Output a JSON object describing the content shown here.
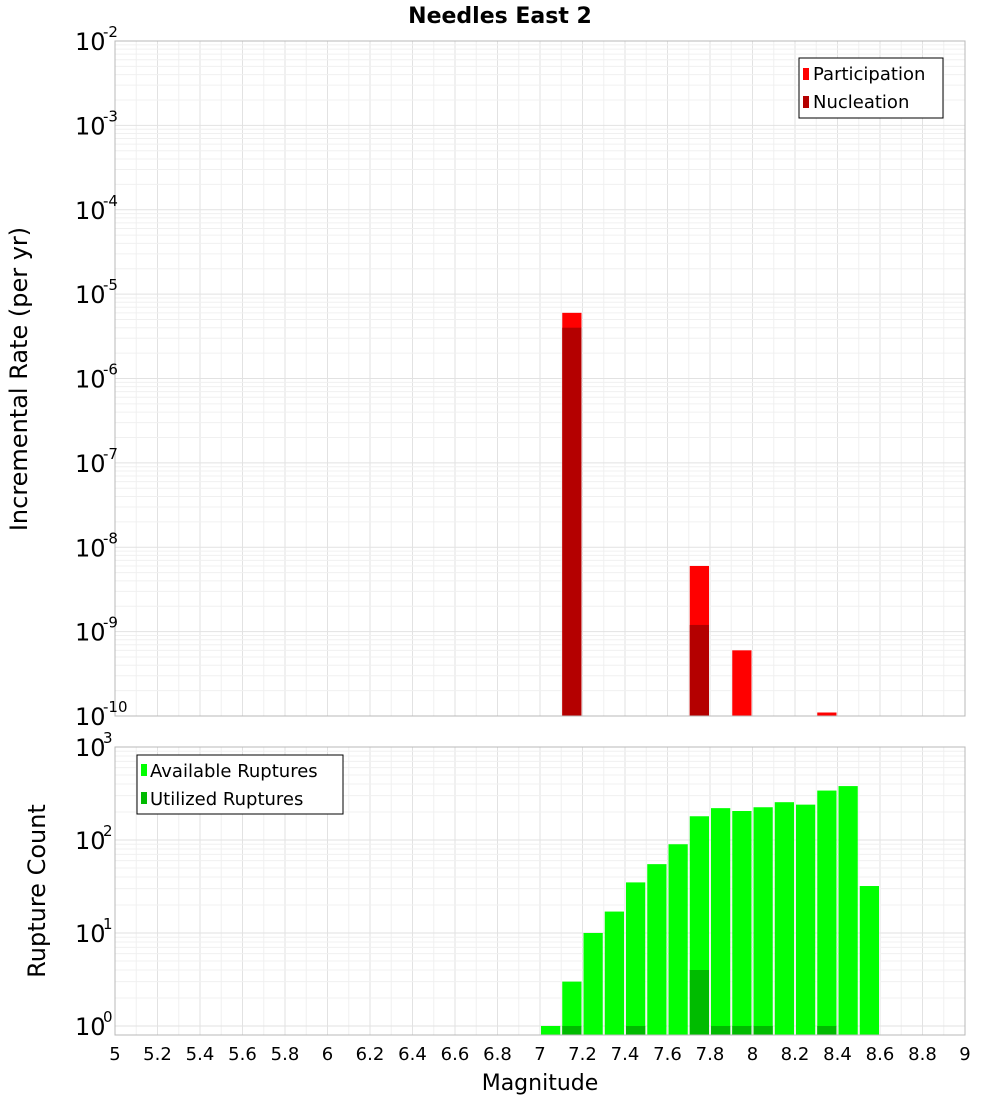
{
  "chart_data": [
    {
      "type": "bar",
      "title": "Needles East 2",
      "xlabel": "",
      "ylabel": "Incremental Rate (per yr)",
      "yscale": "log",
      "ylim": [
        1e-10,
        0.01
      ],
      "xlim": [
        5,
        9
      ],
      "bin_width": 0.1,
      "grid": true,
      "legend_position": "top-right",
      "y_tick_labels": [
        {
          "base": "10",
          "exp": "-10"
        },
        {
          "base": "10",
          "exp": "-9"
        },
        {
          "base": "10",
          "exp": "-8"
        },
        {
          "base": "10",
          "exp": "-7"
        },
        {
          "base": "10",
          "exp": "-6"
        },
        {
          "base": "10",
          "exp": "-5"
        },
        {
          "base": "10",
          "exp": "-4"
        },
        {
          "base": "10",
          "exp": "-3"
        },
        {
          "base": "10",
          "exp": "-2"
        }
      ],
      "series": [
        {
          "name": "Participation",
          "color": "#ff0000",
          "x": [
            7.15,
            7.75,
            7.95,
            8.35
          ],
          "values": [
            6e-06,
            6e-09,
            6e-10,
            1.1e-10
          ]
        },
        {
          "name": "Nucleation",
          "color": "#b40000",
          "x": [
            7.15,
            7.75
          ],
          "values": [
            4e-06,
            1.2e-09
          ]
        }
      ]
    },
    {
      "type": "bar",
      "title": "",
      "xlabel": "Magnitude",
      "ylabel": "Rupture Count",
      "yscale": "log",
      "ylim": [
        0.8,
        1000
      ],
      "xlim": [
        5,
        9
      ],
      "bin_width": 0.1,
      "grid": true,
      "legend_position": "top-left",
      "x_tick_labels": [
        "5",
        "5.2",
        "5.4",
        "5.6",
        "5.8",
        "6",
        "6.2",
        "6.4",
        "6.6",
        "6.8",
        "7",
        "7.2",
        "7.4",
        "7.6",
        "7.8",
        "8",
        "8.2",
        "8.4",
        "8.6",
        "8.8",
        "9"
      ],
      "y_tick_labels": [
        {
          "base": "10",
          "exp": "0"
        },
        {
          "base": "10",
          "exp": "1"
        },
        {
          "base": "10",
          "exp": "2"
        },
        {
          "base": "10",
          "exp": "3"
        }
      ],
      "series": [
        {
          "name": "Available Ruptures",
          "color": "#00ff00",
          "x": [
            7.05,
            7.15,
            7.25,
            7.35,
            7.45,
            7.55,
            7.65,
            7.75,
            7.85,
            7.95,
            8.05,
            8.15,
            8.25,
            8.35,
            8.45,
            8.55
          ],
          "values": [
            1,
            3,
            10,
            17,
            35,
            55,
            90,
            180,
            220,
            205,
            225,
            255,
            240,
            340,
            380,
            32
          ]
        },
        {
          "name": "Utilized Ruptures",
          "color": "#00bb00",
          "x": [
            7.15,
            7.45,
            7.75,
            7.85,
            7.95,
            8.05,
            8.35
          ],
          "values": [
            1,
            1,
            4,
            1,
            1,
            1,
            1
          ]
        }
      ]
    }
  ]
}
